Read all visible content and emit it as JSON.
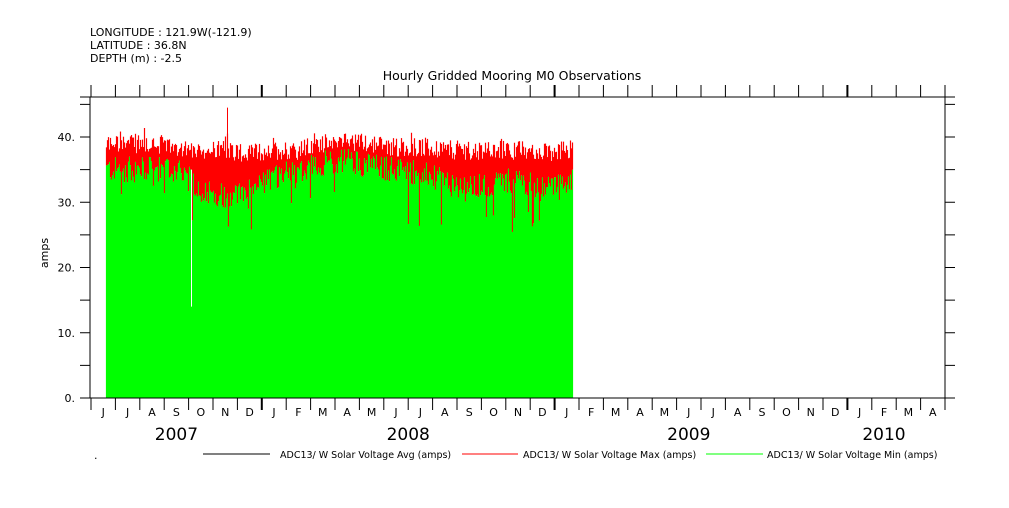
{
  "header": {
    "longitude": "LONGITUDE : 121.9W(-121.9)",
    "latitude": "LATITUDE : 36.8N",
    "depth": "DEPTH (m) : -2.5"
  },
  "colors": {
    "avg": "#000000",
    "max": "#ff0000",
    "min": "#00ff00"
  },
  "chart_data": {
    "type": "bar",
    "title": "Hourly Gridded Mooring M0 Observations",
    "ylabel": "amps",
    "xlabel": "",
    "ylim": [
      0,
      45
    ],
    "yticks": [
      "0.",
      "10.",
      "20.",
      "30.",
      "40."
    ],
    "x_range": [
      "2007-06-01",
      "2010-04-30"
    ],
    "month_labels": [
      "J",
      "J",
      "A",
      "S",
      "O",
      "N",
      "D",
      "J",
      "F",
      "M",
      "A",
      "M",
      "J",
      "J",
      "A",
      "S",
      "O",
      "N",
      "D",
      "J",
      "F",
      "M",
      "A",
      "M",
      "J",
      "J",
      "A",
      "S",
      "O",
      "N",
      "D",
      "J",
      "F",
      "M",
      "A"
    ],
    "year_labels": [
      {
        "label": "2007",
        "month_index": 3.5
      },
      {
        "label": "2008",
        "month_index": 13
      },
      {
        "label": "2009",
        "month_index": 24.5
      },
      {
        "label": "2010",
        "month_index": 32.5
      }
    ],
    "data_start": "2007-06-19",
    "data_end": "2009-01-22",
    "series": [
      {
        "name": "ADC13/ W Solar Voltage Avg (amps)",
        "color": "#000000"
      },
      {
        "name": "ADC13/ W Solar Voltage Max (amps)",
        "color": "#ff0000",
        "monthly_typical": [
          39,
          39,
          39,
          38.5,
          38,
          38,
          37.5,
          38,
          38,
          39,
          39.5,
          39,
          38.5,
          38.5,
          38,
          38,
          38,
          38,
          37.5,
          38
        ]
      },
      {
        "name": "ADC13/ W Solar Voltage Min (amps)",
        "color": "#00ff00",
        "monthly_typical": [
          35,
          35,
          35,
          35,
          32,
          31,
          31.5,
          34,
          35,
          36,
          36.5,
          35.5,
          35,
          34.5,
          33,
          32,
          33,
          33.5,
          32,
          33
        ]
      }
    ],
    "monthly_categories": [
      "2007-06",
      "2007-07",
      "2007-08",
      "2007-09",
      "2007-10",
      "2007-11",
      "2007-12",
      "2008-01",
      "2008-02",
      "2008-03",
      "2008-04",
      "2008-05",
      "2008-06",
      "2008-07",
      "2008-08",
      "2008-09",
      "2008-10",
      "2008-11",
      "2008-12",
      "2009-01"
    ],
    "notable": {
      "peak_max": 44.5,
      "min_dropout": 14
    }
  },
  "legend": {
    "marker": "."
  }
}
